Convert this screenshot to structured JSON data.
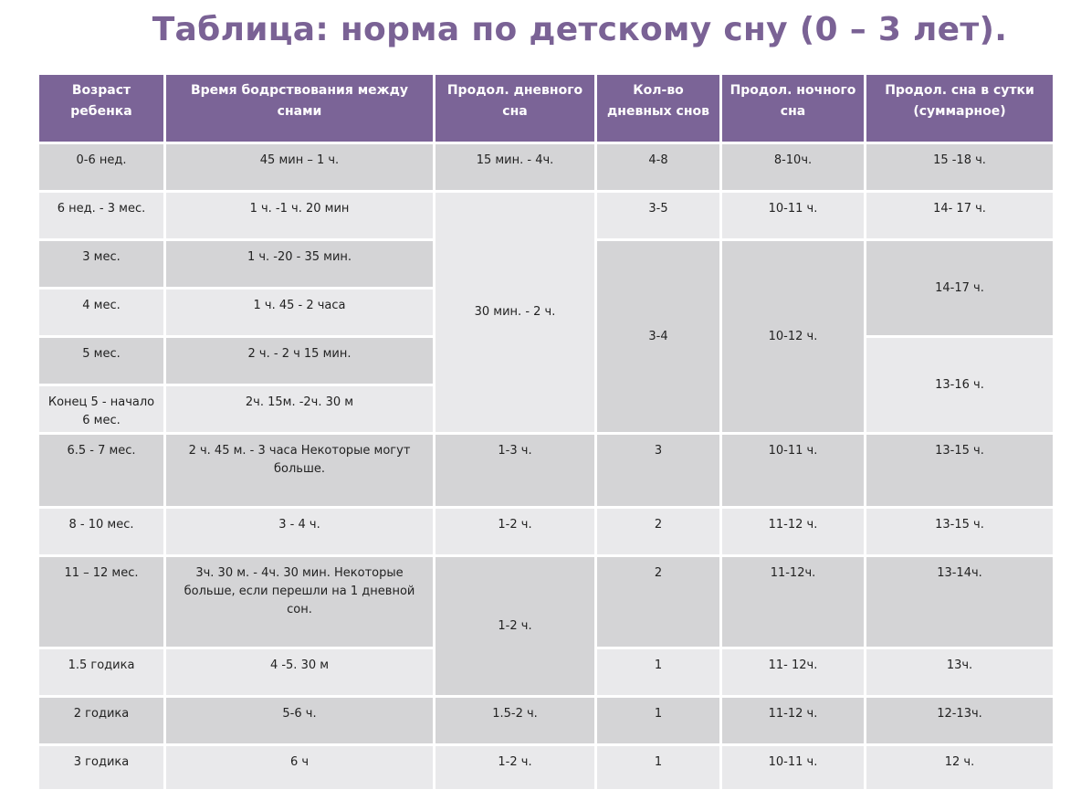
{
  "title": "Таблица: норма по детскому сну (0 – 3 лет).",
  "headers": {
    "age": "Возраст ребенка",
    "wake": "Время бодрствования между снами",
    "day_sleep": "Продол. дневного сна",
    "naps": "Кол-во дневных снов",
    "night": "Продол. ночного сна",
    "total": "Продол. сна в сутки (суммарное)"
  },
  "rows": [
    {
      "age": "0-6 нед.",
      "wake": "45 мин – 1 ч.",
      "day": "15 мин. - 4ч.",
      "naps": "4-8",
      "night": "8-10ч.",
      "total": "15 -18 ч."
    },
    {
      "age": "6 нед. - 3 мес.",
      "wake": "1 ч. -1 ч. 20 мин",
      "naps": "3-5",
      "night": "10-11 ч.",
      "total": "14- 17 ч."
    },
    {
      "age": "3 мес.",
      "wake": "1 ч. -20 - 35 мин."
    },
    {
      "age": "4 мес.",
      "wake": "1 ч. 45 - 2 часа"
    },
    {
      "age": "5 мес.",
      "wake": "2 ч. - 2 ч 15 мин."
    },
    {
      "age": "Конец 5 - начало 6 мес.",
      "wake": "2ч. 15м. -2ч. 30 м"
    },
    {
      "age": "6.5 - 7 мес.",
      "wake": "2 ч. 45 м. - 3 часа Некоторые могут больше.",
      "day": "1-3 ч.",
      "naps": "3",
      "night": "10-11 ч.",
      "total": "13-15 ч."
    },
    {
      "age": "8 - 10 мес.",
      "wake": "3 - 4 ч.",
      "day": "1-2 ч.",
      "naps": "2",
      "night": "11-12 ч.",
      "total": "13-15 ч."
    },
    {
      "age": "11 – 12 мес.",
      "wake": "3ч. 30 м. - 4ч. 30 мин. Некоторые больше, если перешли на 1 дневной сон.",
      "naps": "2",
      "night": "11-12ч.",
      "total": "13-14ч."
    },
    {
      "age": "1.5 годика",
      "wake": "4 -5. 30 м",
      "naps": "1",
      "night": "11- 12ч.",
      "total": "13ч."
    },
    {
      "age": "2 годика",
      "wake": "5-6 ч.",
      "day": "1.5-2 ч.",
      "naps": "1",
      "night": "11-12 ч.",
      "total": "12-13ч."
    },
    {
      "age": "3 годика",
      "wake": "6 ч",
      "day": "1-2 ч.",
      "naps": "1",
      "night": "10-11 ч.",
      "total": "12 ч."
    }
  ],
  "merged": {
    "day_2_6": "30 мин. - 2 ч.",
    "naps_3_6": "3-4",
    "night_3_6": "10-12 ч.",
    "total_3_4": "14-17 ч.",
    "total_5_6": "13-16 ч.",
    "day_11_15": "1-2 ч."
  }
}
